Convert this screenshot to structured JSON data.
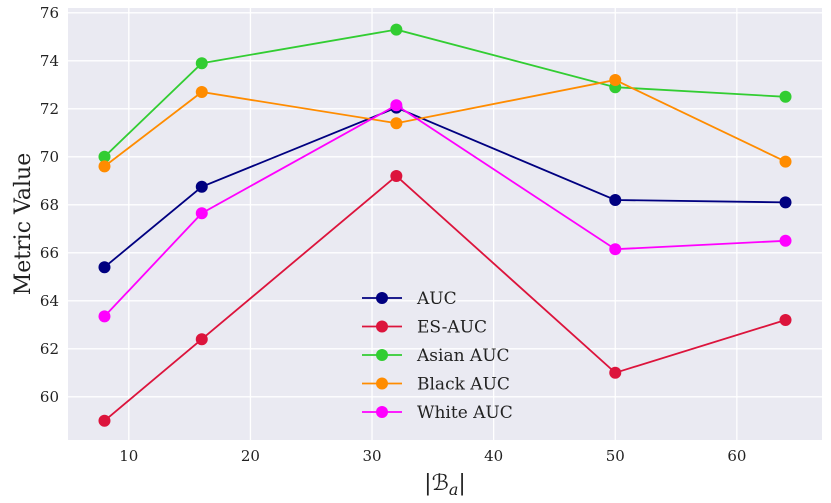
{
  "chart_data": {
    "type": "line",
    "title": "",
    "xlabel": "|ℬ",
    "xlabel_subscript": "a",
    "xlabel_suffix": "|",
    "ylabel": "Metric Value",
    "x": [
      8,
      16,
      32,
      50,
      64
    ],
    "xlim": [
      5,
      67
    ],
    "ylim": [
      58.2,
      76.2
    ],
    "xticks": [
      10,
      20,
      30,
      40,
      50,
      60
    ],
    "yticks": [
      60,
      62,
      64,
      66,
      68,
      70,
      72,
      74,
      76
    ],
    "grid": true,
    "legend_position": "lower-center",
    "series": [
      {
        "name": "AUC",
        "color": "#000080",
        "values": [
          65.4,
          68.75,
          72.05,
          68.2,
          68.1
        ]
      },
      {
        "name": "ES-AUC",
        "color": "#dc143c",
        "values": [
          59.0,
          62.4,
          69.2,
          61.0,
          63.2
        ]
      },
      {
        "name": "Asian AUC",
        "color": "#32cd32",
        "values": [
          70.0,
          73.9,
          75.3,
          72.9,
          72.5
        ]
      },
      {
        "name": "Black AUC",
        "color": "#ff8c00",
        "values": [
          69.6,
          72.7,
          71.4,
          73.2,
          69.8
        ]
      },
      {
        "name": "White AUC",
        "color": "#ff00ff",
        "values": [
          63.35,
          67.65,
          72.15,
          66.15,
          66.5
        ]
      }
    ]
  }
}
